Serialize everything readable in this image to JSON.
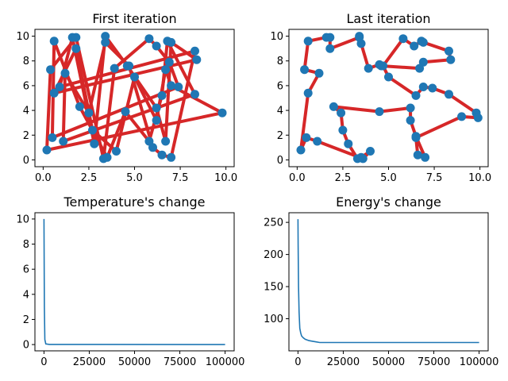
{
  "colors": {
    "route": "#d62728",
    "point": "#1f77b4",
    "curve": "#1f77b4",
    "axis": "#000000"
  },
  "chart_data": [
    {
      "type": "line",
      "title": "First iteration",
      "xlabel": "",
      "ylabel": "",
      "xlim": [
        -0.45,
        10.45
      ],
      "ylim": [
        -0.55,
        10.55
      ],
      "xticks": [
        0,
        2.5,
        5,
        7.5,
        10
      ],
      "xticklabels": [
        "0.0",
        "2.5",
        "5.0",
        "7.5",
        "10.0"
      ],
      "yticks": [
        0,
        2,
        4,
        6,
        8,
        10
      ],
      "yticklabels": [
        "0",
        "2",
        "4",
        "6",
        "8",
        "10"
      ],
      "series": [
        {
          "name": "route",
          "closed": true,
          "path": [
            0,
            5,
            10,
            15,
            20,
            25,
            30,
            35,
            40,
            1,
            6,
            11,
            16,
            21,
            26,
            31,
            36,
            41,
            2,
            7,
            12,
            17,
            22,
            27,
            32,
            37,
            42,
            3,
            8,
            13,
            18,
            23,
            28,
            33,
            38,
            43,
            4,
            9,
            14,
            19,
            24,
            29,
            34,
            39,
            44
          ]
        }
      ],
      "points": [
        [
          0.2,
          0.8
        ],
        [
          0.5,
          1.8
        ],
        [
          1.1,
          1.5
        ],
        [
          0.9,
          5.9
        ],
        [
          0.6,
          5.4
        ],
        [
          0.4,
          7.3
        ],
        [
          0.6,
          9.6
        ],
        [
          1.2,
          7.0
        ],
        [
          1.6,
          9.9
        ],
        [
          1.8,
          9.0
        ],
        [
          1.8,
          9.9
        ],
        [
          2.0,
          4.3
        ],
        [
          2.5,
          3.8
        ],
        [
          2.8,
          1.3
        ],
        [
          2.7,
          2.4
        ],
        [
          3.3,
          0.1
        ],
        [
          3.5,
          0.2
        ],
        [
          3.4,
          9.5
        ],
        [
          3.4,
          10.0
        ],
        [
          4.0,
          0.7
        ],
        [
          3.9,
          7.4
        ],
        [
          4.5,
          3.9
        ],
        [
          4.7,
          7.6
        ],
        [
          4.6,
          7.6
        ],
        [
          5.0,
          6.7
        ],
        [
          5.8,
          9.8
        ],
        [
          5.8,
          1.5
        ],
        [
          6.0,
          1.0
        ],
        [
          6.2,
          4.2
        ],
        [
          6.2,
          3.2
        ],
        [
          6.2,
          9.2
        ],
        [
          6.5,
          5.2
        ],
        [
          6.5,
          0.4
        ],
        [
          6.7,
          1.5
        ],
        [
          6.7,
          7.3
        ],
        [
          6.9,
          7.9
        ],
        [
          6.8,
          9.6
        ],
        [
          7.0,
          0.2
        ],
        [
          7.0,
          9.5
        ],
        [
          7.0,
          6.0
        ],
        [
          7.4,
          5.9
        ],
        [
          8.3,
          5.3
        ],
        [
          8.3,
          8.8
        ],
        [
          8.4,
          8.1
        ],
        [
          9.8,
          3.8
        ]
      ]
    },
    {
      "type": "line",
      "title": "Last iteration",
      "xlabel": "",
      "ylabel": "",
      "xlim": [
        -0.45,
        10.45
      ],
      "ylim": [
        -0.55,
        10.55
      ],
      "xticks": [
        0,
        2.5,
        5,
        7.5,
        10
      ],
      "xticklabels": [
        "0.0",
        "2.5",
        "5.0",
        "7.5",
        "10.0"
      ],
      "yticks": [
        0,
        2,
        4,
        6,
        8,
        10
      ],
      "yticklabels": [
        "0",
        "2",
        "4",
        "6",
        "8",
        "10"
      ],
      "series": [
        {
          "name": "route",
          "closed": true,
          "path": [
            [
              0.6,
              9.6
            ],
            [
              1.6,
              9.9
            ],
            [
              1.8,
              9.9
            ],
            [
              1.8,
              9.0
            ],
            [
              3.4,
              9.9
            ],
            [
              3.4,
              10.0
            ],
            [
              3.5,
              9.4
            ],
            [
              3.9,
              7.4
            ],
            [
              4.5,
              7.7
            ],
            [
              4.6,
              7.6
            ],
            [
              6.7,
              7.4
            ],
            [
              6.9,
              7.9
            ],
            [
              8.4,
              8.1
            ],
            [
              8.3,
              8.8
            ],
            [
              6.9,
              9.5
            ],
            [
              6.8,
              9.6
            ],
            [
              6.4,
              9.2
            ],
            [
              5.8,
              9.8
            ],
            [
              4.7,
              7.6
            ],
            [
              5.0,
              6.7
            ],
            [
              6.5,
              5.2
            ],
            [
              6.9,
              5.9
            ],
            [
              7.4,
              5.8
            ],
            [
              8.3,
              5.3
            ],
            [
              9.8,
              3.8
            ],
            [
              9.9,
              3.4
            ],
            [
              9.0,
              3.5
            ],
            [
              6.5,
              1.8
            ],
            [
              6.6,
              0.4
            ],
            [
              7.0,
              0.2
            ],
            [
              6.5,
              1.9
            ],
            [
              6.2,
              3.2
            ],
            [
              6.2,
              4.2
            ],
            [
              4.5,
              3.9
            ],
            [
              2.0,
              4.3
            ],
            [
              2.4,
              3.8
            ],
            [
              2.5,
              2.4
            ],
            [
              2.8,
              1.3
            ],
            [
              3.3,
              0.1
            ],
            [
              3.5,
              0.2
            ],
            [
              4.0,
              0.7
            ],
            [
              3.6,
              0.1
            ],
            [
              1.1,
              1.5
            ],
            [
              0.5,
              1.8
            ],
            [
              0.2,
              0.8
            ],
            [
              0.6,
              5.4
            ],
            [
              1.2,
              7.0
            ],
            [
              0.4,
              7.3
            ]
          ]
        }
      ],
      "points": [
        [
          0.6,
          9.6
        ],
        [
          1.6,
          9.9
        ],
        [
          1.8,
          9.9
        ],
        [
          1.8,
          9.0
        ],
        [
          3.4,
          9.9
        ],
        [
          3.4,
          10.0
        ],
        [
          3.5,
          9.4
        ],
        [
          3.9,
          7.4
        ],
        [
          4.5,
          7.7
        ],
        [
          4.6,
          7.6
        ],
        [
          6.7,
          7.4
        ],
        [
          6.9,
          7.9
        ],
        [
          8.4,
          8.1
        ],
        [
          8.3,
          8.8
        ],
        [
          6.9,
          9.5
        ],
        [
          6.8,
          9.6
        ],
        [
          6.4,
          9.2
        ],
        [
          5.8,
          9.8
        ],
        [
          4.7,
          7.6
        ],
        [
          5.0,
          6.7
        ],
        [
          6.5,
          5.2
        ],
        [
          6.9,
          5.9
        ],
        [
          7.4,
          5.8
        ],
        [
          8.3,
          5.3
        ],
        [
          9.8,
          3.8
        ],
        [
          9.9,
          3.4
        ],
        [
          9.0,
          3.5
        ],
        [
          6.5,
          1.8
        ],
        [
          6.6,
          0.4
        ],
        [
          7.0,
          0.2
        ],
        [
          6.5,
          1.9
        ],
        [
          6.2,
          3.2
        ],
        [
          6.2,
          4.2
        ],
        [
          4.5,
          3.9
        ],
        [
          2.0,
          4.3
        ],
        [
          2.4,
          3.8
        ],
        [
          2.5,
          2.4
        ],
        [
          2.8,
          1.3
        ],
        [
          3.3,
          0.1
        ],
        [
          3.5,
          0.2
        ],
        [
          4.0,
          0.7
        ],
        [
          3.6,
          0.1
        ],
        [
          1.1,
          1.5
        ],
        [
          0.5,
          1.8
        ],
        [
          0.2,
          0.8
        ],
        [
          0.6,
          5.4
        ],
        [
          1.2,
          7.0
        ],
        [
          0.4,
          7.3
        ]
      ]
    },
    {
      "type": "line",
      "title": "Temperature's change",
      "xlabel": "",
      "ylabel": "",
      "xlim": [
        -5000,
        105000
      ],
      "ylim": [
        -0.5,
        10.5
      ],
      "xticks": [
        0,
        25000,
        50000,
        75000,
        100000
      ],
      "xticklabels": [
        "0",
        "25000",
        "50000",
        "75000",
        "100000"
      ],
      "yticks": [
        0,
        2,
        4,
        6,
        8,
        10
      ],
      "yticklabels": [
        "0",
        "2",
        "4",
        "6",
        "8",
        "10"
      ],
      "series": [
        {
          "name": "temperature",
          "x": [
            0,
            200,
            500,
            1000,
            3000,
            100000
          ],
          "y": [
            10,
            3,
            0.4,
            0.05,
            0.01,
            0.0
          ]
        }
      ]
    },
    {
      "type": "line",
      "title": "Energy's change",
      "xlabel": "",
      "ylabel": "",
      "xlim": [
        -5000,
        105000
      ],
      "ylim": [
        50,
        265
      ],
      "xticks": [
        0,
        25000,
        50000,
        75000,
        100000
      ],
      "xticklabels": [
        "0",
        "25000",
        "50000",
        "75000",
        "100000"
      ],
      "yticks": [
        100,
        150,
        200,
        250
      ],
      "yticklabels": [
        "100",
        "150",
        "200",
        "250"
      ],
      "series": [
        {
          "name": "energy",
          "x": [
            0,
            100,
            300,
            600,
            1000,
            1500,
            2000,
            3000,
            4000,
            6000,
            8000,
            10000,
            12000,
            100000
          ],
          "y": [
            255,
            215,
            150,
            110,
            85,
            78,
            73,
            70,
            68,
            66,
            65,
            64,
            63,
            63
          ]
        }
      ]
    }
  ]
}
